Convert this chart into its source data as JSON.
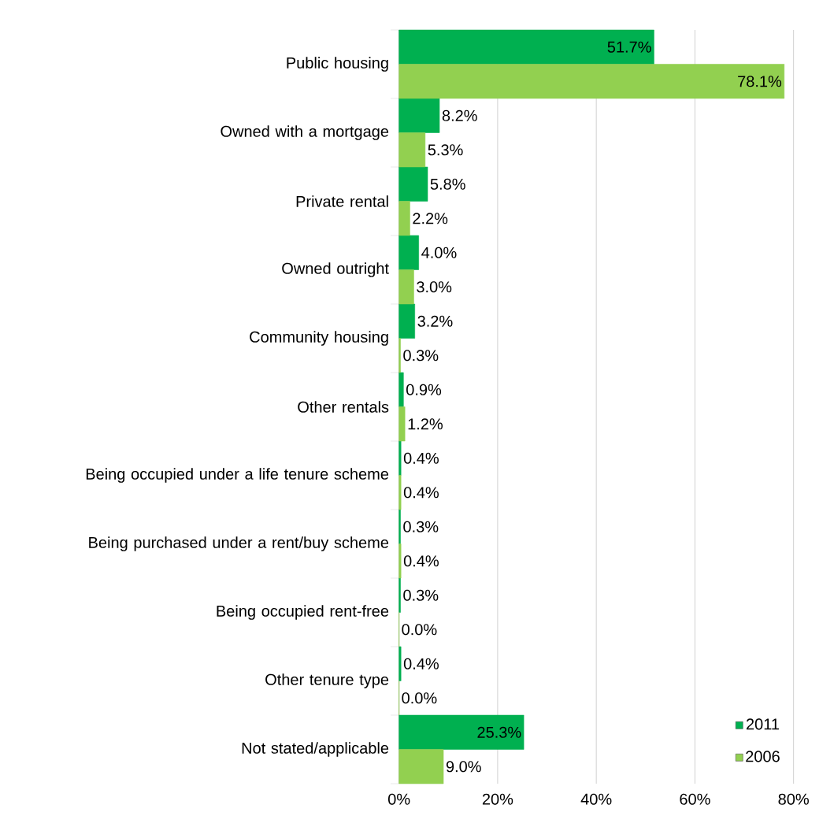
{
  "chart_data": {
    "type": "bar",
    "orientation": "horizontal",
    "categories": [
      "Public housing",
      "Owned with a mortgage",
      "Private rental",
      "Owned outright",
      "Community housing",
      "Other rentals",
      "Being occupied under a life tenure scheme",
      "Being purchased under a rent/buy scheme",
      "Being occupied rent-free",
      "Other tenure type",
      "Not stated/applicable"
    ],
    "series": [
      {
        "name": "2011",
        "color": "#00b050",
        "values": [
          51.7,
          8.2,
          5.8,
          4.0,
          3.2,
          0.9,
          0.4,
          0.3,
          0.3,
          0.4,
          25.3
        ],
        "value_labels": [
          "51.7%",
          "8.2%",
          "5.8%",
          "4.0%",
          "3.2%",
          "0.9%",
          "0.4%",
          "0.3%",
          "0.3%",
          "0.4%",
          "25.3%"
        ]
      },
      {
        "name": "2006",
        "color": "#92d050",
        "values": [
          78.1,
          5.3,
          2.2,
          3.0,
          0.3,
          1.2,
          0.4,
          0.4,
          0.0,
          0.0,
          9.0
        ],
        "value_labels": [
          "78.1%",
          "5.3%",
          "2.2%",
          "3.0%",
          "0.3%",
          "1.2%",
          "0.4%",
          "0.4%",
          "0.0%",
          "0.0%",
          "9.0%"
        ]
      }
    ],
    "xlim": [
      0,
      80
    ],
    "xticks": [
      {
        "value": 0,
        "label": "0%"
      },
      {
        "value": 20,
        "label": "20%"
      },
      {
        "value": 40,
        "label": "40%"
      },
      {
        "value": 60,
        "label": "60%"
      },
      {
        "value": 80,
        "label": "80%"
      }
    ],
    "grid": "x",
    "legend": "bottom right"
  }
}
